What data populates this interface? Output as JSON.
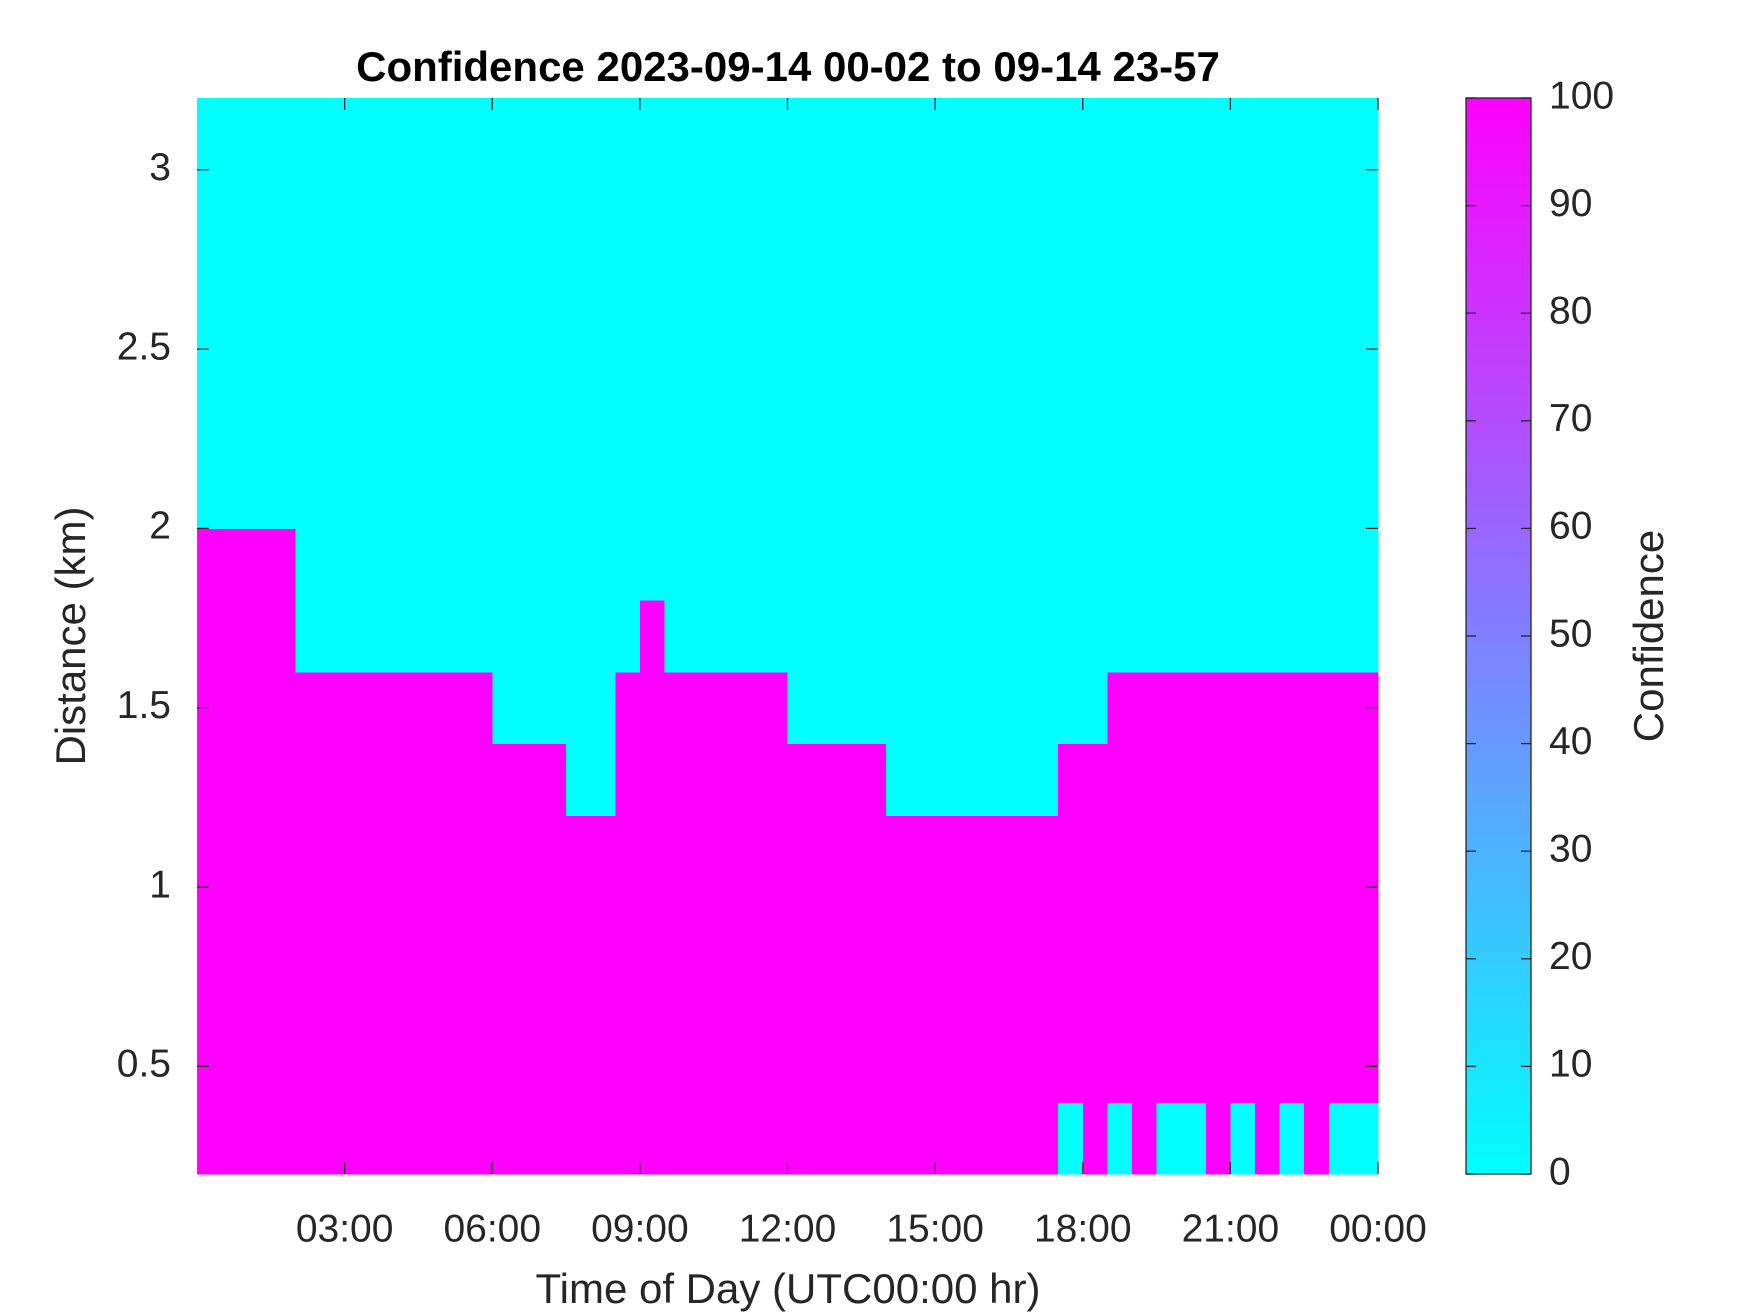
{
  "chart_data": {
    "type": "heatmap",
    "title": "Confidence 2023-09-14 00-02 to 09-14 23-57",
    "xlabel": "Time of Day (UTC00:00 hr)",
    "ylabel": "Distance (km)",
    "colorbar_label": "Confidence",
    "colormap": [
      "#00ffff",
      "#ff00ff"
    ],
    "xlim": [
      0,
      24
    ],
    "xticks": [
      {
        "value": 3,
        "label": "03:00"
      },
      {
        "value": 6,
        "label": "06:00"
      },
      {
        "value": 9,
        "label": "09:00"
      },
      {
        "value": 12,
        "label": "12:00"
      },
      {
        "value": 15,
        "label": "15:00"
      },
      {
        "value": 18,
        "label": "18:00"
      },
      {
        "value": 21,
        "label": "21:00"
      },
      {
        "value": 24,
        "label": "00:00"
      }
    ],
    "ylim": [
      0.2,
      3.2
    ],
    "yticks": [
      0.5,
      1,
      1.5,
      2,
      2.5,
      3
    ],
    "zlim": [
      0,
      100
    ],
    "zticks": [
      0,
      10,
      20,
      30,
      40,
      50,
      60,
      70,
      80,
      90,
      100
    ],
    "x": [
      0.25,
      0.75,
      1.25,
      1.75,
      2.25,
      2.75,
      3.25,
      3.75,
      4.25,
      4.75,
      5.25,
      5.75,
      6.25,
      6.75,
      7.25,
      7.75,
      8.25,
      8.75,
      9.25,
      9.75,
      10.25,
      10.75,
      11.25,
      11.75,
      12.25,
      12.75,
      13.25,
      13.75,
      14.25,
      14.75,
      15.25,
      15.75,
      16.25,
      16.75,
      17.25,
      17.75,
      18.25,
      18.75,
      19.25,
      19.75,
      20.25,
      20.75,
      21.25,
      21.75,
      22.25,
      22.75,
      23.25,
      23.75
    ],
    "y": [
      0.3,
      0.5,
      0.7,
      0.9,
      1.1,
      1.3,
      1.5,
      1.7,
      1.9,
      2.1,
      2.3,
      2.5,
      2.7,
      2.9,
      3.1
    ],
    "z": [
      [
        100,
        100,
        100,
        100,
        100,
        100,
        100,
        100,
        100,
        100,
        100,
        100,
        100,
        100,
        100,
        100,
        100,
        100,
        100,
        100,
        100,
        100,
        100,
        100,
        100,
        100,
        100,
        100,
        100,
        100,
        100,
        100,
        100,
        100,
        100,
        0,
        100,
        0,
        100,
        0,
        0,
        100,
        0,
        100,
        0,
        100,
        0,
        0
      ],
      [
        100,
        100,
        100,
        100,
        100,
        100,
        100,
        100,
        100,
        100,
        100,
        100,
        100,
        100,
        100,
        100,
        100,
        100,
        100,
        100,
        100,
        100,
        100,
        100,
        100,
        100,
        100,
        100,
        100,
        100,
        100,
        100,
        100,
        100,
        100,
        100,
        100,
        100,
        100,
        100,
        100,
        100,
        100,
        100,
        100,
        100,
        100,
        100
      ],
      [
        100,
        100,
        100,
        100,
        100,
        100,
        100,
        100,
        100,
        100,
        100,
        100,
        100,
        100,
        100,
        100,
        100,
        100,
        100,
        100,
        100,
        100,
        100,
        100,
        100,
        100,
        100,
        100,
        100,
        100,
        100,
        100,
        100,
        100,
        100,
        100,
        100,
        100,
        100,
        100,
        100,
        100,
        100,
        100,
        100,
        100,
        100,
        100
      ],
      [
        100,
        100,
        100,
        100,
        100,
        100,
        100,
        100,
        100,
        100,
        100,
        100,
        100,
        100,
        100,
        100,
        100,
        100,
        100,
        100,
        100,
        100,
        100,
        100,
        100,
        100,
        100,
        100,
        100,
        100,
        100,
        100,
        100,
        100,
        100,
        100,
        100,
        100,
        100,
        100,
        100,
        100,
        100,
        100,
        100,
        100,
        100,
        100
      ],
      [
        100,
        100,
        100,
        100,
        100,
        100,
        100,
        100,
        100,
        100,
        100,
        100,
        100,
        100,
        100,
        100,
        100,
        100,
        100,
        100,
        100,
        100,
        100,
        100,
        100,
        100,
        100,
        100,
        100,
        100,
        100,
        100,
        100,
        100,
        100,
        100,
        100,
        100,
        100,
        100,
        100,
        100,
        100,
        100,
        100,
        100,
        100,
        100
      ],
      [
        100,
        100,
        100,
        100,
        100,
        100,
        100,
        100,
        100,
        100,
        100,
        100,
        100,
        100,
        100,
        0,
        0,
        100,
        100,
        100,
        100,
        100,
        100,
        100,
        100,
        100,
        100,
        100,
        0,
        0,
        0,
        0,
        0,
        0,
        0,
        100,
        100,
        100,
        100,
        100,
        100,
        100,
        100,
        100,
        100,
        100,
        100,
        100
      ],
      [
        100,
        100,
        100,
        100,
        100,
        100,
        100,
        100,
        100,
        100,
        100,
        100,
        0,
        0,
        0,
        0,
        0,
        100,
        100,
        100,
        100,
        100,
        100,
        100,
        0,
        0,
        0,
        0,
        0,
        0,
        0,
        0,
        0,
        0,
        0,
        0,
        0,
        100,
        100,
        100,
        100,
        100,
        100,
        100,
        100,
        100,
        100,
        100
      ],
      [
        100,
        100,
        100,
        100,
        0,
        0,
        0,
        0,
        0,
        0,
        0,
        0,
        0,
        0,
        0,
        0,
        0,
        0,
        100,
        0,
        0,
        0,
        0,
        0,
        0,
        0,
        0,
        0,
        0,
        0,
        0,
        0,
        0,
        0,
        0,
        0,
        0,
        0,
        0,
        0,
        0,
        0,
        0,
        0,
        0,
        0,
        0,
        0
      ],
      [
        100,
        100,
        100,
        100,
        0,
        0,
        0,
        0,
        0,
        0,
        0,
        0,
        0,
        0,
        0,
        0,
        0,
        0,
        0,
        0,
        0,
        0,
        0,
        0,
        0,
        0,
        0,
        0,
        0,
        0,
        0,
        0,
        0,
        0,
        0,
        0,
        0,
        0,
        0,
        0,
        0,
        0,
        0,
        0,
        0,
        0,
        0,
        0
      ],
      [
        0,
        0,
        0,
        0,
        0,
        0,
        0,
        0,
        0,
        0,
        0,
        0,
        0,
        0,
        0,
        0,
        0,
        0,
        0,
        0,
        0,
        0,
        0,
        0,
        0,
        0,
        0,
        0,
        0,
        0,
        0,
        0,
        0,
        0,
        0,
        0,
        0,
        0,
        0,
        0,
        0,
        0,
        0,
        0,
        0,
        0,
        0,
        0
      ],
      [
        0,
        0,
        0,
        0,
        0,
        0,
        0,
        0,
        0,
        0,
        0,
        0,
        0,
        0,
        0,
        0,
        0,
        0,
        0,
        0,
        0,
        0,
        0,
        0,
        0,
        0,
        0,
        0,
        0,
        0,
        0,
        0,
        0,
        0,
        0,
        0,
        0,
        0,
        0,
        0,
        0,
        0,
        0,
        0,
        0,
        0,
        0,
        0
      ],
      [
        0,
        0,
        0,
        0,
        0,
        0,
        0,
        0,
        0,
        0,
        0,
        0,
        0,
        0,
        0,
        0,
        0,
        0,
        0,
        0,
        0,
        0,
        0,
        0,
        0,
        0,
        0,
        0,
        0,
        0,
        0,
        0,
        0,
        0,
        0,
        0,
        0,
        0,
        0,
        0,
        0,
        0,
        0,
        0,
        0,
        0,
        0,
        0
      ],
      [
        0,
        0,
        0,
        0,
        0,
        0,
        0,
        0,
        0,
        0,
        0,
        0,
        0,
        0,
        0,
        0,
        0,
        0,
        0,
        0,
        0,
        0,
        0,
        0,
        0,
        0,
        0,
        0,
        0,
        0,
        0,
        0,
        0,
        0,
        0,
        0,
        0,
        0,
        0,
        0,
        0,
        0,
        0,
        0,
        0,
        0,
        0,
        0
      ],
      [
        0,
        0,
        0,
        0,
        0,
        0,
        0,
        0,
        0,
        0,
        0,
        0,
        0,
        0,
        0,
        0,
        0,
        0,
        0,
        0,
        0,
        0,
        0,
        0,
        0,
        0,
        0,
        0,
        0,
        0,
        0,
        0,
        0,
        0,
        0,
        0,
        0,
        0,
        0,
        0,
        0,
        0,
        0,
        0,
        0,
        0,
        0,
        0
      ],
      [
        0,
        0,
        0,
        0,
        0,
        0,
        0,
        0,
        0,
        0,
        0,
        0,
        0,
        0,
        0,
        0,
        0,
        0,
        0,
        0,
        0,
        0,
        0,
        0,
        0,
        0,
        0,
        0,
        0,
        0,
        0,
        0,
        0,
        0,
        0,
        0,
        0,
        0,
        0,
        0,
        0,
        0,
        0,
        0,
        0,
        0,
        0,
        0
      ]
    ]
  }
}
